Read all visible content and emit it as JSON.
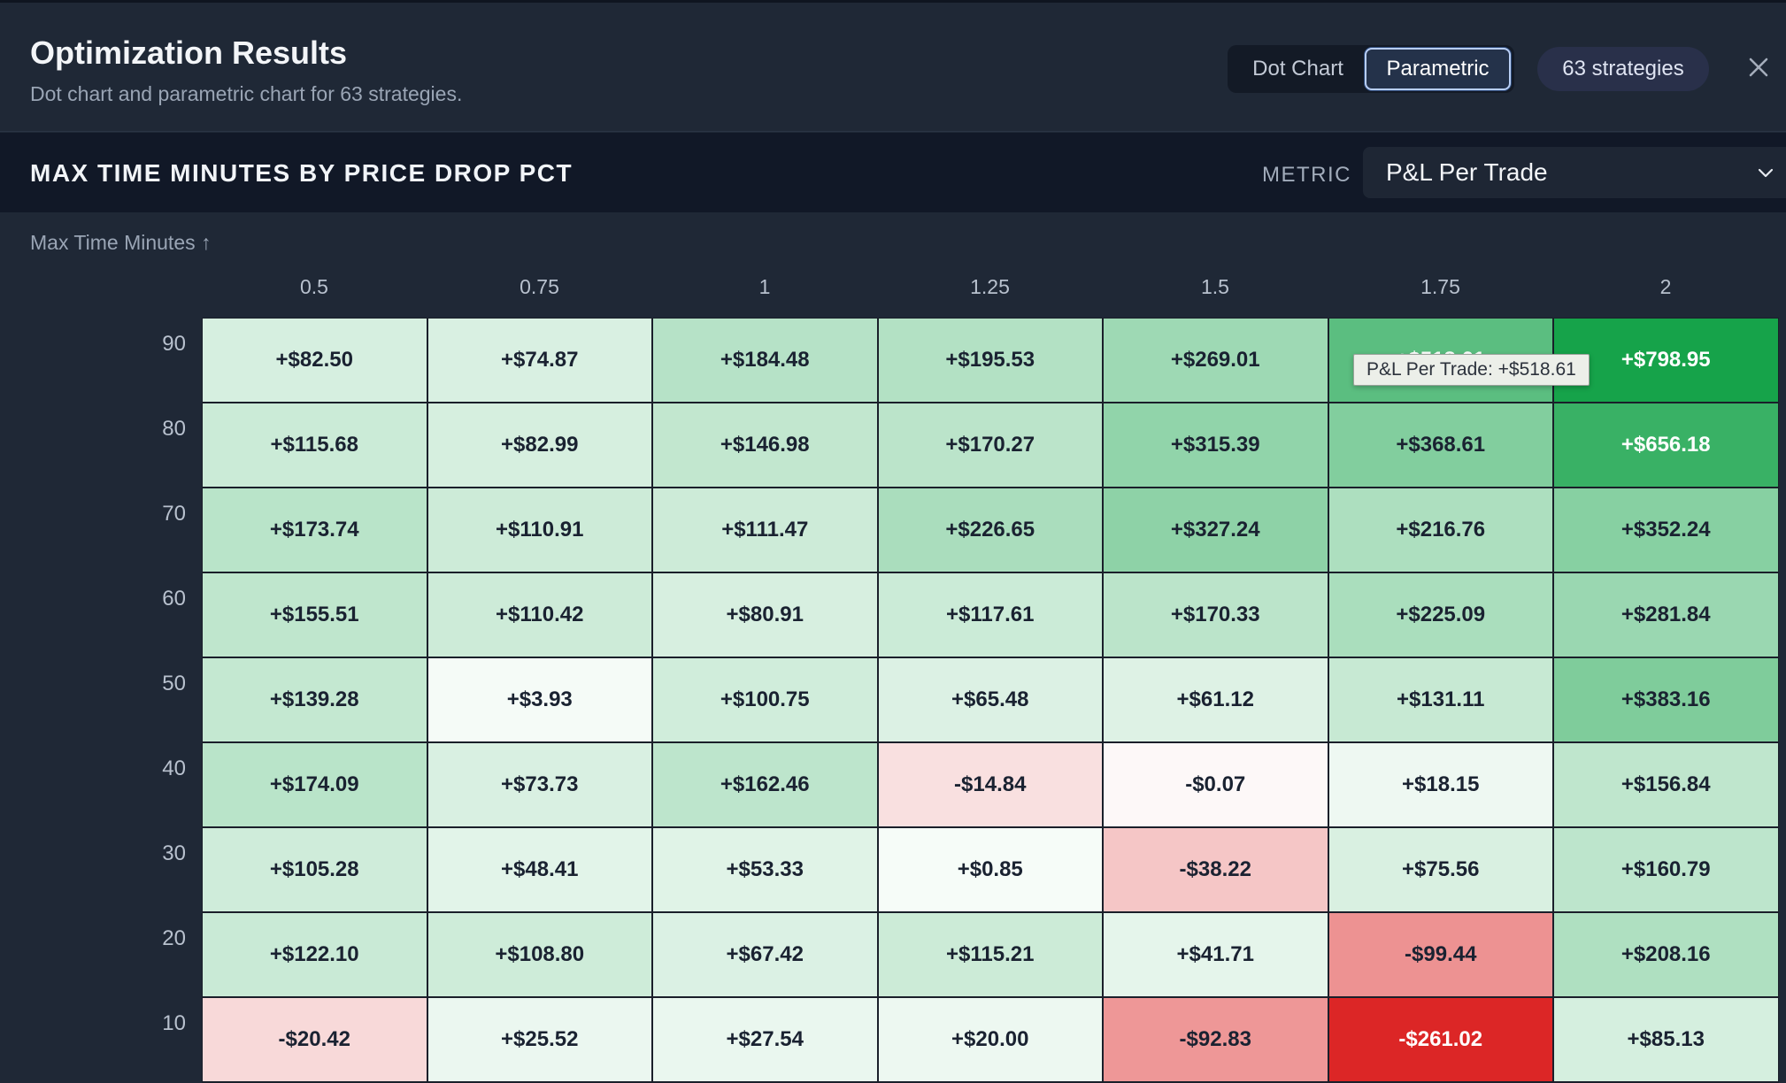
{
  "header": {
    "title": "Optimization Results",
    "subtitle": "Dot chart and parametric chart for 63 strategies.",
    "tabs": [
      {
        "label": "Dot Chart",
        "active": false
      },
      {
        "label": "Parametric",
        "active": true
      }
    ],
    "badge": "63 strategies",
    "close_icon": "close-icon"
  },
  "toolbar": {
    "title": "MAX TIME MINUTES BY PRICE DROP PCT",
    "metric_label": "METRIC",
    "metric_value": "P&L Per Trade",
    "chevron_icon": "chevron-down-icon"
  },
  "tooltip": {
    "text": "P&L Per Trade: +$518.61"
  },
  "chart_data": {
    "type": "heatmap",
    "ylabel": "Max Time Minutes ↑",
    "x": [
      "0.5",
      "0.75",
      "1",
      "1.25",
      "1.5",
      "1.75",
      "2"
    ],
    "y": [
      "90",
      "80",
      "70",
      "60",
      "50",
      "40",
      "30",
      "20",
      "10"
    ],
    "values": [
      [
        82.5,
        74.87,
        184.48,
        195.53,
        269.01,
        518.61,
        798.95
      ],
      [
        115.68,
        82.99,
        146.98,
        170.27,
        315.39,
        368.61,
        656.18
      ],
      [
        173.74,
        110.91,
        111.47,
        226.65,
        327.24,
        216.76,
        352.24
      ],
      [
        155.51,
        110.42,
        80.91,
        117.61,
        170.33,
        225.09,
        281.84
      ],
      [
        139.28,
        3.93,
        100.75,
        65.48,
        61.12,
        131.11,
        383.16
      ],
      [
        174.09,
        73.73,
        162.46,
        -14.84,
        -0.07,
        18.15,
        156.84
      ],
      [
        105.28,
        48.41,
        53.33,
        0.85,
        -38.22,
        75.56,
        160.79
      ],
      [
        122.1,
        108.8,
        67.42,
        115.21,
        41.71,
        -99.44,
        208.16
      ],
      [
        -20.42,
        25.52,
        27.54,
        20.0,
        -92.83,
        -261.02,
        85.13
      ]
    ],
    "labels": [
      [
        "+$82.50",
        "+$74.87",
        "+$184.48",
        "+$195.53",
        "+$269.01",
        "+$518.61",
        "+$798.95"
      ],
      [
        "+$115.68",
        "+$82.99",
        "+$146.98",
        "+$170.27",
        "+$315.39",
        "+$368.61",
        "+$656.18"
      ],
      [
        "+$173.74",
        "+$110.91",
        "+$111.47",
        "+$226.65",
        "+$327.24",
        "+$216.76",
        "+$352.24"
      ],
      [
        "+$155.51",
        "+$110.42",
        "+$80.91",
        "+$117.61",
        "+$170.33",
        "+$225.09",
        "+$281.84"
      ],
      [
        "+$139.28",
        "+$3.93",
        "+$100.75",
        "+$65.48",
        "+$61.12",
        "+$131.11",
        "+$383.16"
      ],
      [
        "+$174.09",
        "+$73.73",
        "+$162.46",
        "-$14.84",
        "-$0.07",
        "+$18.15",
        "+$156.84"
      ],
      [
        "+$105.28",
        "+$48.41",
        "+$53.33",
        "+$0.85",
        "-$38.22",
        "+$75.56",
        "+$160.79"
      ],
      [
        "+$122.10",
        "+$108.80",
        "+$67.42",
        "+$115.21",
        "+$41.71",
        "-$99.44",
        "+$208.16"
      ],
      [
        "-$20.42",
        "+$25.52",
        "+$27.54",
        "+$20.00",
        "-$92.83",
        "-$261.02",
        "+$85.13"
      ]
    ],
    "colors": {
      "positive": "#16a34a",
      "negative": "#dc2626",
      "neutral": "#ffffff",
      "text_dark": "#1a2231",
      "text_light": "#ffffff"
    }
  }
}
